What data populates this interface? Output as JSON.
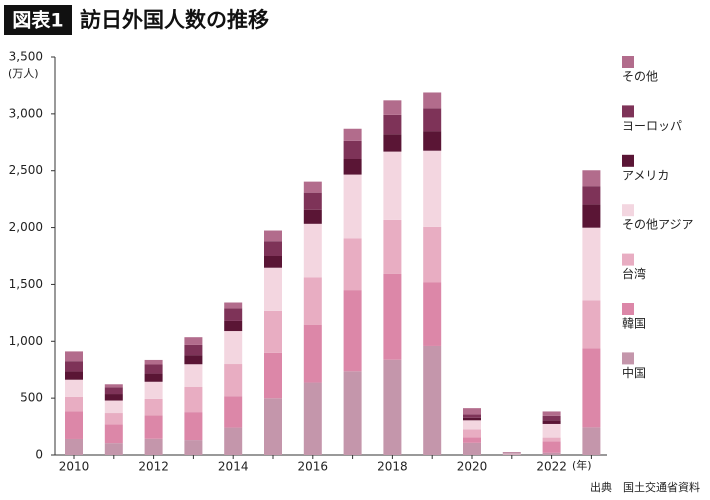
{
  "chart_data": {
    "type": "stacked_bar",
    "title_tag": "図表1",
    "title": "訪日外国人数の推移",
    "y_unit": "(万人)",
    "x_unit": "(年)",
    "source": "出典　国土交通省資料",
    "categories": [
      "2010",
      null,
      "2012",
      null,
      "2014",
      null,
      "2016",
      null,
      "2018",
      null,
      "2020",
      null,
      "2022",
      null
    ],
    "series": [
      {
        "name": "中国",
        "color": "#c496ab",
        "values": [
          141,
          104,
          143,
          131,
          241,
          499,
          637,
          736,
          838,
          959,
          107,
          4,
          19,
          243
        ]
      },
      {
        "name": "韓国",
        "color": "#dc87a8",
        "values": [
          244,
          166,
          204,
          246,
          276,
          400,
          509,
          714,
          754,
          558,
          49,
          2,
          101,
          696
        ]
      },
      {
        "name": "台湾",
        "color": "#e8adc2",
        "values": [
          127,
          99,
          147,
          221,
          283,
          368,
          417,
          456,
          476,
          489,
          69,
          1,
          33,
          420
        ]
      },
      {
        "name": "その他アジア",
        "color": "#f3d6e0",
        "values": [
          150,
          110,
          150,
          200,
          290,
          380,
          470,
          560,
          600,
          670,
          80,
          8,
          120,
          640
        ]
      },
      {
        "name": "アメリカ",
        "color": "#5a1535",
        "values": [
          73,
          57,
          72,
          80,
          89,
          103,
          124,
          137,
          153,
          172,
          22,
          2,
          32,
          205
        ]
      },
      {
        "name": "ヨーロッパ",
        "color": "#7e3358",
        "values": [
          90,
          60,
          80,
          90,
          110,
          130,
          150,
          160,
          170,
          200,
          30,
          3,
          40,
          160
        ]
      },
      {
        "name": "その他",
        "color": "#b26c8c",
        "values": [
          86,
          26,
          40,
          68,
          52,
          94,
          97,
          106,
          128,
          140,
          55,
          5,
          38,
          140
        ]
      }
    ],
    "ylim": [
      0,
      3500
    ],
    "yticks": [
      0,
      500,
      {
        "value": 1000,
        "label": "1,000"
      },
      {
        "value": 1500,
        "label": "1,500"
      },
      {
        "value": 2000,
        "label": "2,000"
      },
      {
        "value": 2500,
        "label": "2,500"
      },
      {
        "value": 3000,
        "label": "3,000"
      },
      {
        "value": 3500,
        "label": "3,500"
      }
    ],
    "grid": false
  }
}
